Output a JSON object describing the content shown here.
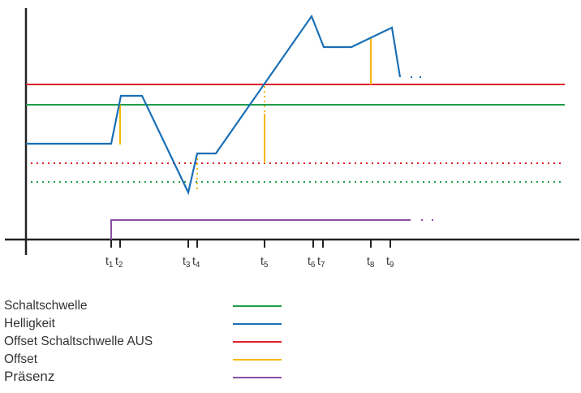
{
  "ticks": [
    {
      "base": "t",
      "sub": "1"
    },
    {
      "base": "t",
      "sub": "2"
    },
    {
      "base": "t",
      "sub": "3"
    },
    {
      "base": "t",
      "sub": "4"
    },
    {
      "base": "t",
      "sub": "5"
    },
    {
      "base": "t",
      "sub": "6"
    },
    {
      "base": "t",
      "sub": "7"
    },
    {
      "base": "t",
      "sub": "8"
    },
    {
      "base": "t",
      "sub": "9"
    }
  ],
  "legend": [
    {
      "label": "Schaltschwelle",
      "color": "#1e9e4a"
    },
    {
      "label": "Helligkeit",
      "color": "#1a6fb5"
    },
    {
      "label": "Offset Schaltschwelle AUS",
      "color": "#e0202a"
    },
    {
      "label": "Offset",
      "color": "#f5b800"
    },
    {
      "label": "Präsenz",
      "color": "#8a4fa3"
    }
  ],
  "colors": {
    "schaltschwelle": "#1e9e4a",
    "helligkeit": "#1a6fb5",
    "offset_aus": "#e0202a",
    "offset": "#f5b800",
    "praesenz": "#8a4fa3",
    "axis": "#222222"
  }
}
